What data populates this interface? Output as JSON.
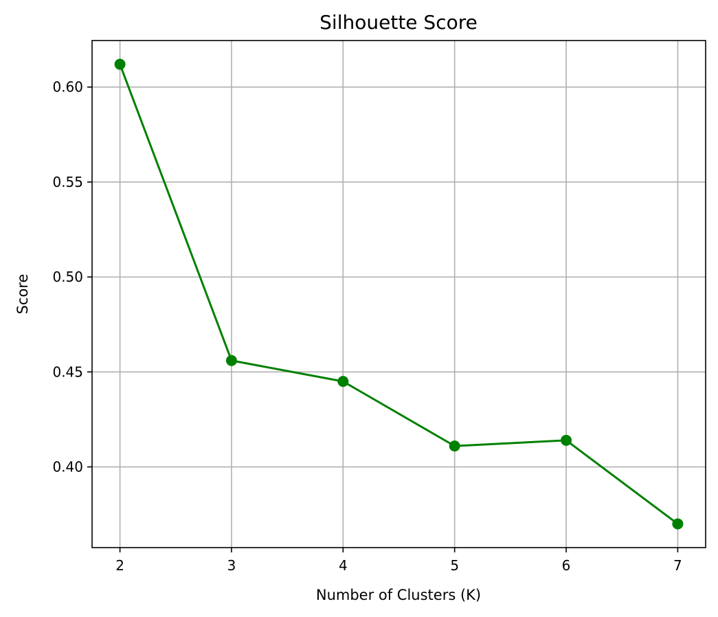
{
  "chart_data": {
    "type": "line",
    "title": "Silhouette Score",
    "xlabel": "Number of Clusters (K)",
    "ylabel": "Score",
    "x": [
      2,
      3,
      4,
      5,
      6,
      7
    ],
    "series": [
      {
        "values": [
          0.612,
          0.456,
          0.445,
          0.411,
          0.414,
          0.37
        ],
        "color": "#008000",
        "marker": "circle"
      }
    ],
    "xlim": [
      1.75,
      7.25
    ],
    "ylim": [
      0.3575,
      0.6245
    ],
    "xticks": [
      2,
      3,
      4,
      5,
      6,
      7
    ],
    "xtick_labels": [
      "2",
      "3",
      "4",
      "5",
      "6",
      "7"
    ],
    "yticks": [
      0.4,
      0.45,
      0.5,
      0.55,
      0.6
    ],
    "ytick_labels": [
      "0.40",
      "0.45",
      "0.50",
      "0.55",
      "0.60"
    ],
    "grid": true,
    "grid_color": "#b0b0b0",
    "legend": false
  }
}
